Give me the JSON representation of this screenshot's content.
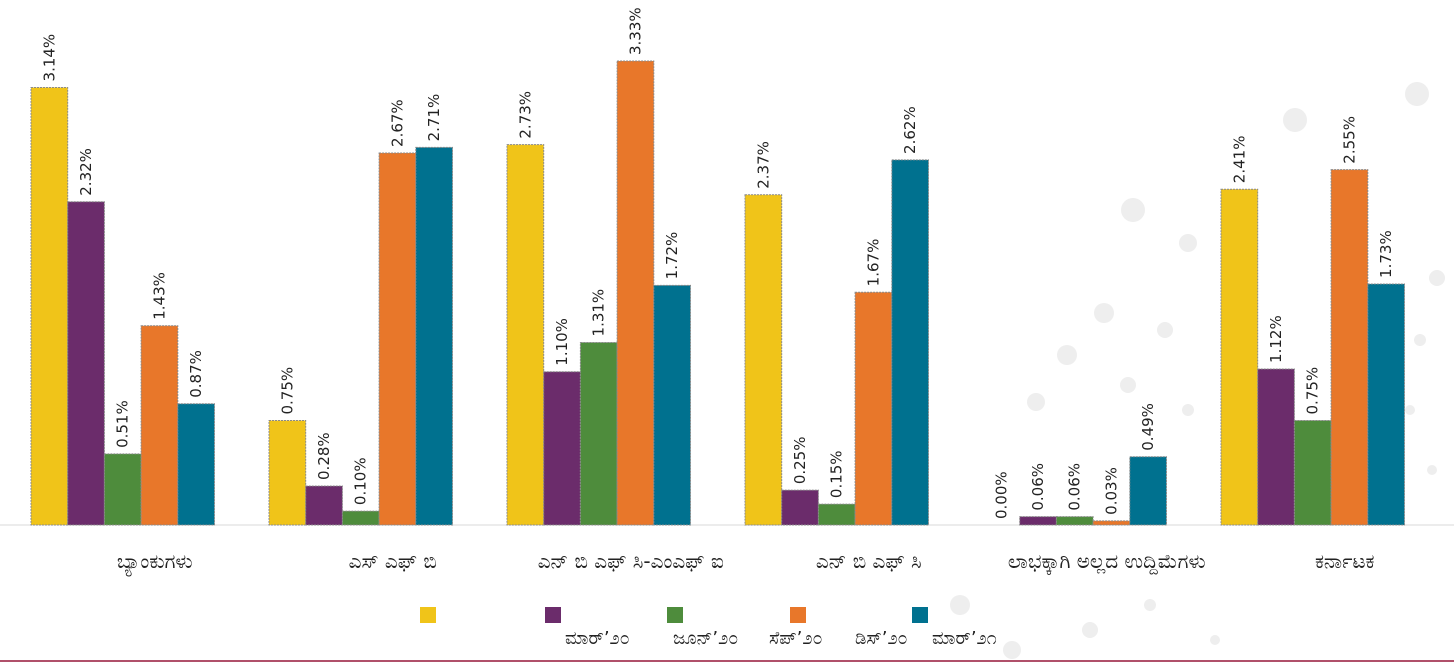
{
  "chart_data": {
    "type": "bar",
    "categories": [
      "ಬ್ಯಾಂಕುಗಳು",
      "ಎಸ್ ಎಫ್ ಬಿ",
      "ಎನ್ ಬಿ ಎಫ್ ಸಿ-ಎಂಎಫ್ ಐ",
      "ಎನ್ ಬಿ ಎಫ್ ಸಿ",
      "ಲಾಭಕ್ಕಾಗಿ ಅಲ್ಲದ ಉದ್ದಿಮೆಗಳು",
      "ಕರ್ನಾಟಕ"
    ],
    "series": [
      {
        "name": "ಮಾರ್’೨೦",
        "color": "#f0c419",
        "values": [
          3.14,
          0.75,
          2.73,
          2.37,
          0.0,
          2.41
        ],
        "value_labels": [
          "3.14%",
          "0.75%",
          "2.73%",
          "2.37%",
          "0.00%",
          "2.41%"
        ]
      },
      {
        "name": "ಜೂನ್’೨೦",
        "color": "#6b2c6b",
        "values": [
          2.32,
          0.28,
          1.1,
          0.25,
          0.06,
          1.12
        ],
        "value_labels": [
          "2.32%",
          "0.28%",
          "1.10%",
          "0.25%",
          "0.06%",
          "1.12%"
        ]
      },
      {
        "name": "ಸೆಪ್’೨೦",
        "color": "#4e8c3c",
        "values": [
          0.51,
          0.1,
          1.31,
          0.15,
          0.06,
          0.75
        ],
        "value_labels": [
          "0.51%",
          "0.10%",
          "1.31%",
          "0.15%",
          "0.06%",
          "0.75%"
        ]
      },
      {
        "name": "ಡಿಸ್’೨೦",
        "color": "#e8772a",
        "values": [
          1.43,
          2.67,
          3.33,
          1.67,
          0.03,
          2.55
        ],
        "value_labels": [
          "1.43%",
          "2.67%",
          "3.33%",
          "1.67%",
          "0.03%",
          "2.55%"
        ]
      },
      {
        "name": "ಮಾರ್’೨೧",
        "color": "#00718f",
        "values": [
          0.87,
          2.71,
          1.72,
          2.62,
          0.49,
          1.73
        ],
        "value_labels": [
          "0.87%",
          "2.71%",
          "1.72%",
          "2.62%",
          "0.49%",
          "1.73%"
        ]
      }
    ]
  }
}
